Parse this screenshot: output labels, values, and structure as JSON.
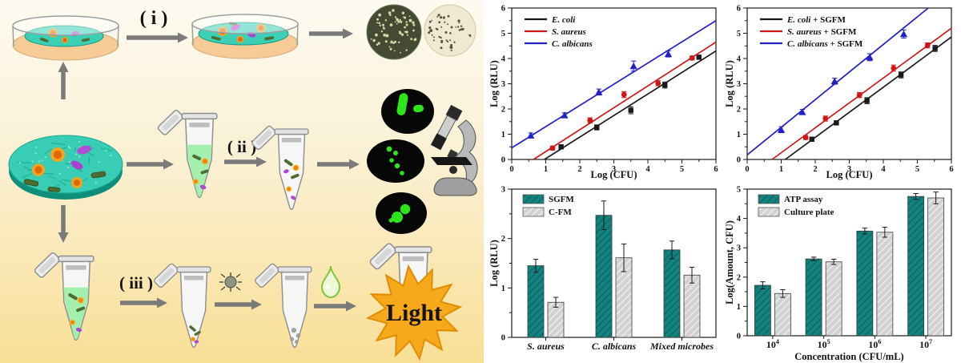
{
  "diagram": {
    "labels": {
      "step1": "( i )",
      "step2": "( ii )",
      "step3": "( iii )",
      "light": "Light"
    },
    "colors": {
      "background_top": "#fdfaf1",
      "background_bottom": "#f9df96",
      "film_teal": "#38cdb4",
      "film_edge": "#0f8f7a",
      "media_orange": "#f6cb96",
      "tube_liquid_green": "#a3efad",
      "fluorescent_green": "#2ce61b",
      "starburst_orange": "#f7a91c",
      "arrow_gray": "#7a7a7a"
    }
  },
  "chart_data": [
    {
      "id": "scatter-plain",
      "type": "scatter",
      "xlabel": "Log (CFU)",
      "ylabel": "Log (RLU)",
      "xlim": [
        0,
        6
      ],
      "ylim": [
        0,
        6
      ],
      "xticks": [
        0,
        1,
        2,
        3,
        4,
        5,
        6
      ],
      "yticks": [
        0,
        1,
        2,
        3,
        4,
        5,
        6
      ],
      "legend_position": "top-left",
      "series": [
        {
          "name": "E. coli",
          "suffix": "",
          "color": "#1a1a1a",
          "marker": "square",
          "points": [
            [
              1.45,
              0.5
            ],
            [
              2.5,
              1.27
            ],
            [
              3.5,
              1.95
            ],
            [
              4.5,
              2.95
            ],
            [
              5.5,
              4.05
            ]
          ],
          "yerr": [
            0.08,
            0.1,
            0.14,
            0.12,
            0.08
          ],
          "fit_line": [
            [
              0.96,
              0
            ],
            [
              6,
              4.3
            ]
          ]
        },
        {
          "name": "S. aureus",
          "suffix": "",
          "color": "#cf1717",
          "marker": "circle",
          "points": [
            [
              1.2,
              0.45
            ],
            [
              2.3,
              1.55
            ],
            [
              3.3,
              2.57
            ],
            [
              4.3,
              3.02
            ],
            [
              5.3,
              4.02
            ]
          ],
          "yerr": [
            0.08,
            0.1,
            0.12,
            0.1,
            0.08
          ],
          "fit_line": [
            [
              0.64,
              0
            ],
            [
              6,
              4.65
            ]
          ]
        },
        {
          "name": "C. albicans",
          "suffix": "",
          "color": "#2121c4",
          "marker": "triangle",
          "points": [
            [
              0.56,
              0.95
            ],
            [
              1.55,
              1.75
            ],
            [
              2.56,
              2.67
            ],
            [
              3.58,
              3.7
            ],
            [
              4.6,
              4.18
            ]
          ],
          "yerr": [
            0.1,
            0.1,
            0.12,
            0.2,
            0.12
          ],
          "fit_line": [
            [
              0,
              0.46
            ],
            [
              6,
              5.5
            ]
          ]
        }
      ]
    },
    {
      "id": "scatter-sgfm",
      "type": "scatter",
      "xlabel": "Log (CFU)",
      "ylabel": "Log (RLU)",
      "xlim": [
        0,
        6
      ],
      "ylim": [
        0,
        6
      ],
      "xticks": [
        0,
        1,
        2,
        3,
        4,
        5,
        6
      ],
      "yticks": [
        0,
        1,
        2,
        3,
        4,
        5,
        6
      ],
      "legend_position": "top-left",
      "series": [
        {
          "name": "E. coli",
          "suffix": " + SGFM",
          "color": "#1a1a1a",
          "marker": "square",
          "points": [
            [
              1.9,
              0.8
            ],
            [
              2.62,
              1.45
            ],
            [
              3.52,
              2.33
            ],
            [
              4.52,
              3.35
            ],
            [
              5.52,
              4.4
            ]
          ],
          "yerr": [
            0.08,
            0.08,
            0.12,
            0.12,
            0.12
          ],
          "fit_line": [
            [
              1.12,
              0
            ],
            [
              6,
              4.85
            ]
          ]
        },
        {
          "name": "S. aureus",
          "suffix": " + SGFM",
          "color": "#cf1717",
          "marker": "circle",
          "points": [
            [
              1.72,
              0.87
            ],
            [
              2.3,
              1.62
            ],
            [
              3.3,
              2.55
            ],
            [
              4.3,
              3.62
            ],
            [
              5.3,
              4.52
            ]
          ],
          "yerr": [
            0.08,
            0.1,
            0.1,
            0.12,
            0.1
          ],
          "fit_line": [
            [
              0.73,
              0
            ],
            [
              6,
              5.2
            ]
          ]
        },
        {
          "name": "C. albicans",
          "suffix": " + SGFM",
          "color": "#2121c4",
          "marker": "triangle",
          "points": [
            [
              1.0,
              1.18
            ],
            [
              1.62,
              1.88
            ],
            [
              2.57,
              3.1
            ],
            [
              3.6,
              4.05
            ],
            [
              4.6,
              4.97
            ]
          ],
          "yerr": [
            0.12,
            0.1,
            0.12,
            0.14,
            0.16
          ],
          "fit_line": [
            [
              0,
              0.18
            ],
            [
              5.32,
              6
            ]
          ]
        }
      ]
    },
    {
      "id": "bar-rlu",
      "type": "bar",
      "xlabel": "",
      "ylabel": "Log (RLU)",
      "ylim": [
        0,
        3
      ],
      "yticks": [
        0,
        1,
        2,
        3
      ],
      "categories": [
        "S. aureus",
        "C. albicans",
        "Mixed microbes"
      ],
      "categories_italic": true,
      "legend_position": "top-left",
      "series": [
        {
          "name": "SGFM",
          "fill": "teal-hatch",
          "values": [
            1.45,
            2.47,
            1.77
          ],
          "yerr": [
            0.13,
            0.29,
            0.18
          ]
        },
        {
          "name": "C-FM",
          "fill": "gray-hatch",
          "values": [
            0.71,
            1.61,
            1.26
          ],
          "yerr": [
            0.1,
            0.28,
            0.16
          ]
        }
      ]
    },
    {
      "id": "bar-cfu",
      "type": "bar",
      "xlabel": "Concentration (CFU/mL)",
      "ylabel": "Log(Amount, CFU)",
      "ylim": [
        0,
        5
      ],
      "yticks": [
        0,
        1,
        2,
        3,
        4,
        5
      ],
      "categories": [
        "10^4",
        "10^5",
        "10^6",
        "10^7"
      ],
      "categories_italic": false,
      "legend_position": "top-left",
      "series": [
        {
          "name": "ATP assay",
          "fill": "teal-hatch",
          "values": [
            1.72,
            2.62,
            3.57,
            4.75
          ],
          "yerr": [
            0.12,
            0.06,
            0.1,
            0.1
          ]
        },
        {
          "name": "Culture plate",
          "fill": "gray-hatch",
          "values": [
            1.44,
            2.52,
            3.53,
            4.7
          ],
          "yerr": [
            0.13,
            0.09,
            0.17,
            0.2
          ]
        }
      ]
    }
  ],
  "chart_colors": {
    "teal_bar": "#12837f",
    "gray_bar": "#d2d2d2"
  }
}
